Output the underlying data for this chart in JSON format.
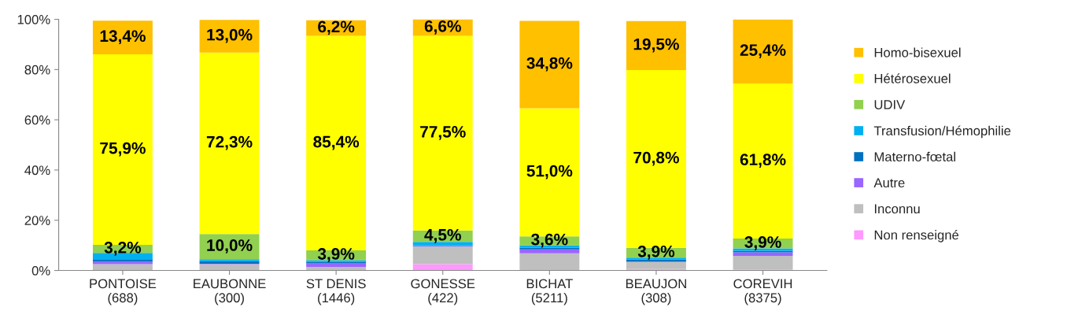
{
  "chart_data": {
    "type": "bar",
    "stacked": true,
    "categories": [
      "PONTOISE\n(688)",
      "EAUBONNE\n(300)",
      "ST DENIS\n(1446)",
      "GONESSE\n(422)",
      "BICHAT\n(5211)",
      "BEAUJON\n(308)",
      "COREVIH\n(8375)"
    ],
    "series": [
      {
        "name": "Non renseigné",
        "color": "#ff99ff",
        "values": [
          null,
          null,
          null,
          2.5,
          null,
          0.6,
          0.4
        ]
      },
      {
        "name": "Inconnu",
        "color": "#bfbfbf",
        "values": [
          2.5,
          2.5,
          1.4,
          7.0,
          6.8,
          2.9,
          5.4
        ]
      },
      {
        "name": "Autre",
        "color": "#9966ff",
        "values": [
          1.0,
          0.2,
          1.6,
          0.2,
          1.6,
          null,
          1.4
        ]
      },
      {
        "name": "Materno-fœtal",
        "color": "#0070c0",
        "values": [
          1.0,
          1.0,
          0.5,
          0.3,
          0.6,
          0.8,
          0.6
        ]
      },
      {
        "name": "Transfusion/Hémophilie",
        "color": "#00b0f0",
        "values": [
          2.5,
          0.8,
          0.6,
          1.4,
          1.0,
          0.8,
          1.0
        ]
      },
      {
        "name": "UDIV",
        "color": "#92d050",
        "values": [
          3.2,
          10.0,
          3.9,
          4.5,
          3.6,
          3.9,
          3.9
        ],
        "value_labels": [
          "3,2%",
          "10,0%",
          "3,9%",
          "4,5%",
          "3,6%",
          "3,9%",
          "3,9%"
        ]
      },
      {
        "name": "Hétérosexuel",
        "color": "#ffff00",
        "values": [
          75.9,
          72.3,
          85.4,
          77.5,
          51.0,
          70.8,
          61.8
        ],
        "value_labels": [
          "75,9%",
          "72,3%",
          "85,4%",
          "77,5%",
          "51,0%",
          "70,8%",
          "61,8%"
        ]
      },
      {
        "name": "Homo-bisexuel",
        "color": "#ffc000",
        "values": [
          13.4,
          13.0,
          6.2,
          6.6,
          34.8,
          19.5,
          25.4
        ],
        "value_labels": [
          "13,4%",
          "13,0%",
          "6,2%",
          "6,6%",
          "34,8%",
          "19,5%",
          "25,4%"
        ]
      }
    ],
    "ylim": [
      0,
      100
    ],
    "yticks": [
      {
        "value": 0,
        "label": "0%"
      },
      {
        "value": 20,
        "label": "20%"
      },
      {
        "value": 40,
        "label": "40%"
      },
      {
        "value": 60,
        "label": "60%"
      },
      {
        "value": 80,
        "label": "80%"
      },
      {
        "value": 100,
        "label": "100%"
      }
    ],
    "grid": false,
    "legend": "right"
  }
}
